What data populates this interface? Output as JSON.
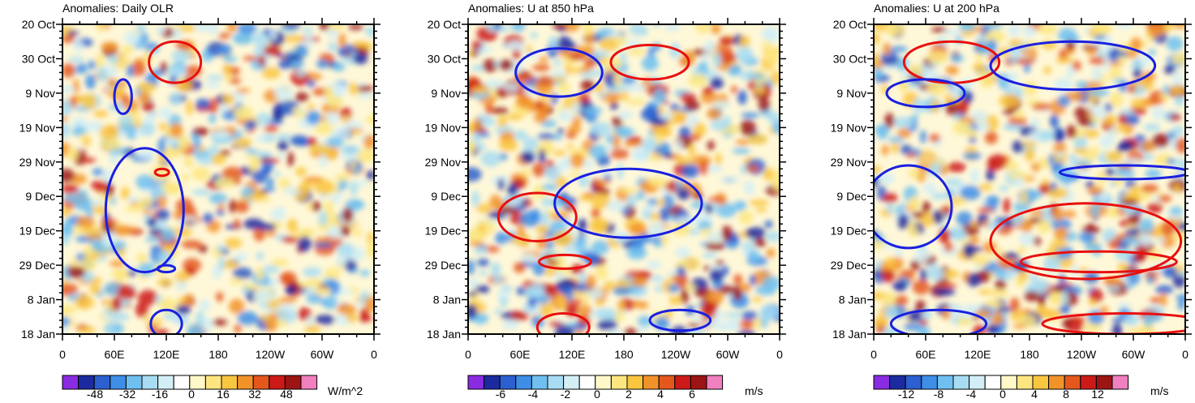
{
  "chart_data": [
    {
      "type": "heatmap",
      "title": "Anomalies: Daily OLR",
      "xlabel": "",
      "ylabel": "",
      "x_ticks": [
        "0",
        "60E",
        "120E",
        "180",
        "120W",
        "60W",
        "0"
      ],
      "x_range": [
        0,
        360
      ],
      "y_ticks": [
        "20 Oct",
        "30 Oct",
        "9 Nov",
        "19 Nov",
        "29 Nov",
        "9 Dec",
        "19 Dec",
        "29 Dec",
        "8 Jan",
        "18 Jan"
      ],
      "y_range_days": [
        0,
        90
      ],
      "colorbar": {
        "ticks": [
          "-48",
          "-32",
          "-16",
          "0",
          "16",
          "32",
          "48"
        ],
        "tick_values": [
          -48,
          -32,
          -16,
          0,
          16,
          32,
          48
        ],
        "range": [
          -64,
          64
        ],
        "units": "W/m^2"
      },
      "overlays": [
        {
          "color": "red",
          "lon": 130,
          "day": 11,
          "dlon": 30,
          "dday": 6
        },
        {
          "color": "red",
          "lon": 115,
          "day": 43,
          "dlon": 8,
          "dday": 1
        },
        {
          "color": "blue",
          "lon": 70,
          "day": 21,
          "dlon": 10,
          "dday": 5
        },
        {
          "color": "blue",
          "lon": 95,
          "day": 54,
          "dlon": 45,
          "dday": 18
        },
        {
          "color": "blue",
          "lon": 120,
          "day": 71,
          "dlon": 10,
          "dday": 1
        },
        {
          "color": "blue",
          "lon": 120,
          "day": 87,
          "dlon": 18,
          "dday": 4
        }
      ]
    },
    {
      "type": "heatmap",
      "title": "Anomalies: U at 850 hPa",
      "xlabel": "",
      "ylabel": "",
      "x_ticks": [
        "0",
        "60E",
        "120E",
        "180",
        "120W",
        "60W",
        "0"
      ],
      "x_range": [
        0,
        360
      ],
      "y_ticks": [
        "20 Oct",
        "30 Oct",
        "9 Nov",
        "19 Nov",
        "29 Nov",
        "9 Dec",
        "19 Dec",
        "29 Dec",
        "8 Jan",
        "18 Jan"
      ],
      "y_range_days": [
        0,
        90
      ],
      "colorbar": {
        "ticks": [
          "-6",
          "-4",
          "-2",
          "0",
          "2",
          "4",
          "6"
        ],
        "tick_values": [
          -6,
          -4,
          -2,
          0,
          2,
          4,
          6
        ],
        "range": [
          -8,
          8
        ],
        "units": "m/s"
      },
      "overlays": [
        {
          "color": "red",
          "lon": 210,
          "day": 11,
          "dlon": 45,
          "dday": 5
        },
        {
          "color": "red",
          "lon": 80,
          "day": 56,
          "dlon": 45,
          "dday": 7
        },
        {
          "color": "red",
          "lon": 112,
          "day": 69,
          "dlon": 30,
          "dday": 2
        },
        {
          "color": "red",
          "lon": 110,
          "day": 88,
          "dlon": 30,
          "dday": 4
        },
        {
          "color": "blue",
          "lon": 105,
          "day": 14,
          "dlon": 50,
          "dday": 7
        },
        {
          "color": "blue",
          "lon": 185,
          "day": 52,
          "dlon": 85,
          "dday": 10
        },
        {
          "color": "blue",
          "lon": 245,
          "day": 86,
          "dlon": 35,
          "dday": 3
        }
      ]
    },
    {
      "type": "heatmap",
      "title": "Anomalies: U at 200 hPa",
      "xlabel": "",
      "ylabel": "",
      "x_ticks": [
        "0",
        "60E",
        "120E",
        "180",
        "120W",
        "60W",
        "0"
      ],
      "x_range": [
        0,
        360
      ],
      "y_ticks": [
        "20 Oct",
        "30 Oct",
        "9 Nov",
        "19 Nov",
        "29 Nov",
        "9 Dec",
        "19 Dec",
        "29 Dec",
        "8 Jan",
        "18 Jan"
      ],
      "y_range_days": [
        0,
        90
      ],
      "colorbar": {
        "ticks": [
          "-12",
          "-8",
          "-4",
          "0",
          "4",
          "8",
          "12"
        ],
        "tick_values": [
          -12,
          -8,
          -4,
          0,
          4,
          8,
          12
        ],
        "range": [
          -16,
          16
        ],
        "units": "m/s"
      },
      "overlays": [
        {
          "color": "red",
          "lon": 90,
          "day": 11,
          "dlon": 55,
          "dday": 6
        },
        {
          "color": "red",
          "lon": 245,
          "day": 63,
          "dlon": 110,
          "dday": 11
        },
        {
          "color": "red",
          "lon": 260,
          "day": 69,
          "dlon": 90,
          "dday": 3
        },
        {
          "color": "red",
          "lon": 290,
          "day": 87,
          "dlon": 95,
          "dday": 3
        },
        {
          "color": "blue",
          "lon": 230,
          "day": 12,
          "dlon": 95,
          "dday": 7
        },
        {
          "color": "blue",
          "lon": 40,
          "day": 53,
          "dlon": 50,
          "dday": 12
        },
        {
          "color": "blue",
          "lon": 60,
          "day": 20,
          "dlon": 45,
          "dday": 4
        },
        {
          "color": "blue",
          "lon": 290,
          "day": 43,
          "dlon": 75,
          "dday": 2
        },
        {
          "color": "blue",
          "lon": 75,
          "day": 87,
          "dlon": 55,
          "dday": 4
        }
      ]
    }
  ],
  "palette": [
    "#8a2be2",
    "#1c2aa0",
    "#2c5fd0",
    "#3e8ee8",
    "#6fc0f0",
    "#a8dcf2",
    "#d4eef6",
    "#ffffff",
    "#fff8c8",
    "#fde680",
    "#f9c640",
    "#f2932a",
    "#e4581e",
    "#cc1a18",
    "#9c1414",
    "#f080c0"
  ],
  "contour_colors": {
    "red": "#e81010",
    "blue": "#1a20e0"
  }
}
